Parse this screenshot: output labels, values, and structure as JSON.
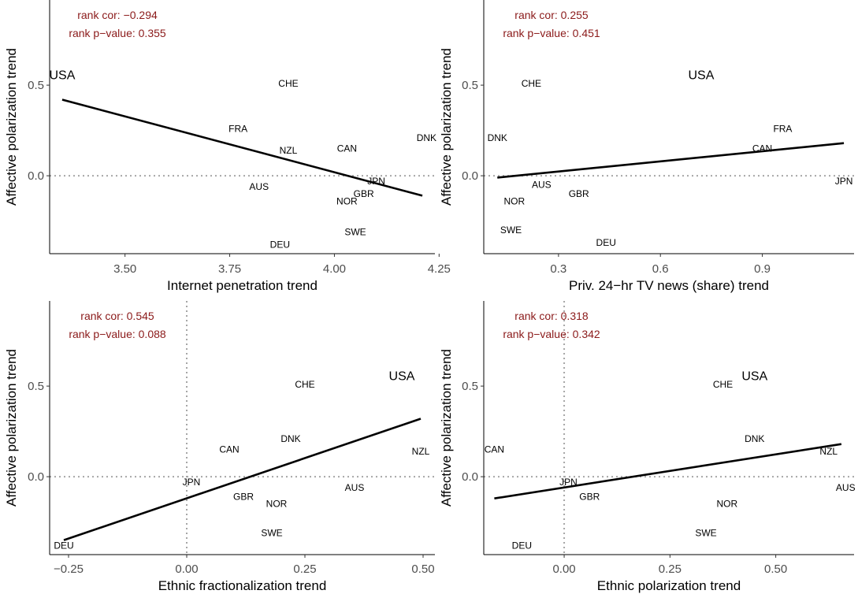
{
  "colors": {
    "annotation": "#8b1a1a",
    "reference_line": "#a6a6a6",
    "axis": "#000000",
    "fit_line": "#000000"
  },
  "chart_data": [
    {
      "type": "scatter",
      "xlabel": "Internet penetration trend",
      "ylabel": "Affective polarization trend",
      "xlim": [
        3.32,
        4.24
      ],
      "ylim": [
        -0.43,
        0.97
      ],
      "xticks": [
        3.5,
        3.75,
        4.0,
        4.25
      ],
      "xtick_labels": [
        "3.50",
        "3.75",
        "4.00",
        "4.25"
      ],
      "yticks": [
        0.0,
        0.5
      ],
      "ytick_labels": [
        "0.0",
        "0.5"
      ],
      "hline": 0.0,
      "vline": null,
      "annotations": [
        "rank cor: −0.294",
        "rank p−value: 0.355"
      ],
      "points": [
        {
          "label": "USA",
          "x": 3.35,
          "y": 0.55
        },
        {
          "label": "CHE",
          "x": 3.89,
          "y": 0.51
        },
        {
          "label": "FRA",
          "x": 3.77,
          "y": 0.26
        },
        {
          "label": "NZL",
          "x": 3.89,
          "y": 0.14
        },
        {
          "label": "CAN",
          "x": 4.03,
          "y": 0.15
        },
        {
          "label": "DNK",
          "x": 4.22,
          "y": 0.21
        },
        {
          "label": "AUS",
          "x": 3.82,
          "y": -0.06
        },
        {
          "label": "JPN",
          "x": 4.1,
          "y": -0.03
        },
        {
          "label": "GBR",
          "x": 4.07,
          "y": -0.1
        },
        {
          "label": "NOR",
          "x": 4.03,
          "y": -0.14
        },
        {
          "label": "SWE",
          "x": 4.05,
          "y": -0.31
        },
        {
          "label": "DEU",
          "x": 3.87,
          "y": -0.38
        }
      ],
      "fit": {
        "x": [
          3.35,
          4.21
        ],
        "y": [
          0.42,
          -0.11
        ]
      }
    },
    {
      "type": "scatter",
      "xlabel": "Priv. 24−hr TV news (share) trend",
      "ylabel": "Affective polarization trend",
      "xlim": [
        0.08,
        1.17
      ],
      "ylim": [
        -0.43,
        0.97
      ],
      "xticks": [
        0.3,
        0.6,
        0.9
      ],
      "xtick_labels": [
        "0.3",
        "0.6",
        "0.9"
      ],
      "yticks": [
        0.0,
        0.5
      ],
      "ytick_labels": [
        "0.0",
        "0.5"
      ],
      "hline": 0.0,
      "vline": null,
      "annotations": [
        "rank cor: 0.255",
        "rank p−value: 0.451"
      ],
      "points": [
        {
          "label": "USA",
          "x": 0.72,
          "y": 0.55
        },
        {
          "label": "CHE",
          "x": 0.22,
          "y": 0.51
        },
        {
          "label": "DNK",
          "x": 0.12,
          "y": 0.21
        },
        {
          "label": "FRA",
          "x": 0.96,
          "y": 0.26
        },
        {
          "label": "CAN",
          "x": 0.9,
          "y": 0.15
        },
        {
          "label": "JPN",
          "x": 1.14,
          "y": -0.03
        },
        {
          "label": "AUS",
          "x": 0.25,
          "y": -0.05
        },
        {
          "label": "GBR",
          "x": 0.36,
          "y": -0.1
        },
        {
          "label": "NOR",
          "x": 0.17,
          "y": -0.14
        },
        {
          "label": "SWE",
          "x": 0.16,
          "y": -0.3
        },
        {
          "label": "DEU",
          "x": 0.44,
          "y": -0.37
        }
      ],
      "fit": {
        "x": [
          0.12,
          1.14
        ],
        "y": [
          -0.01,
          0.18
        ]
      }
    },
    {
      "type": "scatter",
      "xlabel": "Ethnic fractionalization trend",
      "ylabel": "Affective polarization trend",
      "xlim": [
        -0.29,
        0.525
      ],
      "ylim": [
        -0.43,
        0.97
      ],
      "xticks": [
        -0.25,
        0.0,
        0.25,
        0.5
      ],
      "xtick_labels": [
        "−0.25",
        "0.00",
        "0.25",
        "0.50"
      ],
      "yticks": [
        0.0,
        0.5
      ],
      "ytick_labels": [
        "0.0",
        "0.5"
      ],
      "hline": 0.0,
      "vline": 0.0,
      "annotations": [
        "rank cor: 0.545",
        "rank p−value: 0.088"
      ],
      "points": [
        {
          "label": "USA",
          "x": 0.455,
          "y": 0.55
        },
        {
          "label": "CHE",
          "x": 0.25,
          "y": 0.51
        },
        {
          "label": "DNK",
          "x": 0.22,
          "y": 0.21
        },
        {
          "label": "CAN",
          "x": 0.09,
          "y": 0.15
        },
        {
          "label": "NZL",
          "x": 0.495,
          "y": 0.14
        },
        {
          "label": "JPN",
          "x": 0.01,
          "y": -0.03
        },
        {
          "label": "AUS",
          "x": 0.355,
          "y": -0.06
        },
        {
          "label": "GBR",
          "x": 0.12,
          "y": -0.11
        },
        {
          "label": "NOR",
          "x": 0.19,
          "y": -0.15
        },
        {
          "label": "SWE",
          "x": 0.18,
          "y": -0.31
        },
        {
          "label": "DEU",
          "x": -0.26,
          "y": -0.38
        }
      ],
      "fit": {
        "x": [
          -0.26,
          0.495
        ],
        "y": [
          -0.35,
          0.32
        ]
      }
    },
    {
      "type": "scatter",
      "xlabel": "Ethnic polarization trend",
      "ylabel": "Affective polarization trend",
      "xlim": [
        -0.19,
        0.685
      ],
      "ylim": [
        -0.43,
        0.97
      ],
      "xticks": [
        0.0,
        0.25,
        0.5
      ],
      "xtick_labels": [
        "0.00",
        "0.25",
        "0.50"
      ],
      "yticks": [
        0.0,
        0.5
      ],
      "ytick_labels": [
        "0.0",
        "0.5"
      ],
      "hline": 0.0,
      "vline": 0.0,
      "annotations": [
        "rank cor: 0.318",
        "rank p−value: 0.342"
      ],
      "points": [
        {
          "label": "USA",
          "x": 0.45,
          "y": 0.55
        },
        {
          "label": "CHE",
          "x": 0.375,
          "y": 0.51
        },
        {
          "label": "DNK",
          "x": 0.45,
          "y": 0.21
        },
        {
          "label": "CAN",
          "x": -0.165,
          "y": 0.15
        },
        {
          "label": "NZL",
          "x": 0.625,
          "y": 0.14
        },
        {
          "label": "JPN",
          "x": 0.01,
          "y": -0.03
        },
        {
          "label": "AUS",
          "x": 0.665,
          "y": -0.06
        },
        {
          "label": "GBR",
          "x": 0.06,
          "y": -0.11
        },
        {
          "label": "NOR",
          "x": 0.385,
          "y": -0.15
        },
        {
          "label": "SWE",
          "x": 0.335,
          "y": -0.31
        },
        {
          "label": "DEU",
          "x": -0.1,
          "y": -0.38
        }
      ],
      "fit": {
        "x": [
          -0.165,
          0.655
        ],
        "y": [
          -0.12,
          0.18
        ]
      }
    }
  ]
}
